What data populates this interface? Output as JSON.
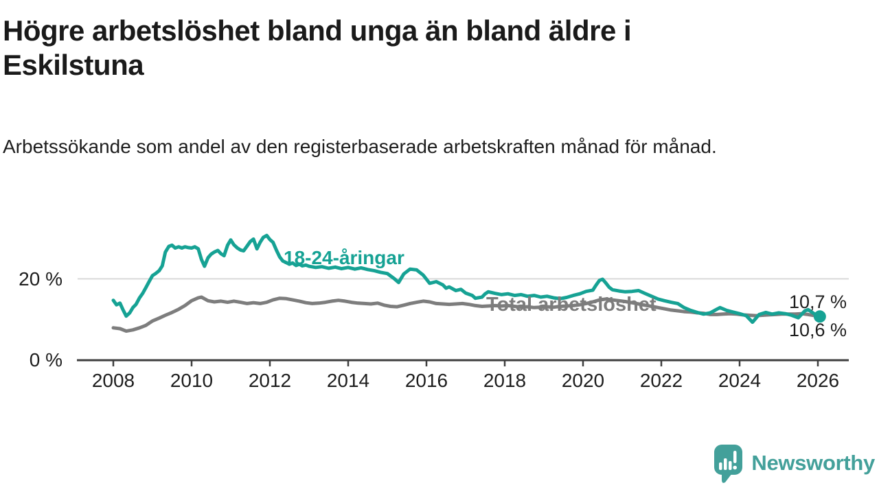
{
  "page": {
    "background": "#ffffff"
  },
  "header": {
    "title": "Högre arbetslöshet bland unga än bland äldre i Eskilstuna",
    "subtitle": "Arbetssökande som andel av den registerbaserade arbetskraften månad för månad."
  },
  "branding": {
    "name": "Newsworthy",
    "icon": "speech-bubble-bar-chart-icon",
    "color": "#43a09a"
  },
  "chart_data": {
    "type": "line",
    "unit": "%",
    "title": "",
    "xlabel": "",
    "ylabel": "",
    "x_ticks": [
      "2008",
      "2010",
      "2012",
      "2014",
      "2016",
      "2018",
      "2020",
      "2022",
      "2024",
      "2026"
    ],
    "y_ticks": [
      {
        "value": 0,
        "label": "0 %"
      },
      {
        "value": 20,
        "label": "20 %"
      }
    ],
    "xlim": [
      2007.9,
      2026.8
    ],
    "ylim": [
      0,
      33
    ],
    "grid": "horizontal gridline at 20% only",
    "legend": "inline labels next to lines",
    "colors": {
      "axis": "#3f3f3f",
      "grid": "#d9d9d9",
      "tick_text": "#1d1d1d"
    },
    "series": [
      {
        "name": "18-24-åringar",
        "color": "#16a294",
        "end_label": "10,7 %",
        "end_dot": true,
        "points": [
          [
            2008.0,
            14.7
          ],
          [
            2008.08,
            13.6
          ],
          [
            2008.17,
            14.0
          ],
          [
            2008.25,
            12.3
          ],
          [
            2008.33,
            10.8
          ],
          [
            2008.42,
            11.6
          ],
          [
            2008.5,
            12.9
          ],
          [
            2008.58,
            13.7
          ],
          [
            2008.67,
            15.3
          ],
          [
            2008.75,
            16.4
          ],
          [
            2008.83,
            17.8
          ],
          [
            2008.92,
            19.4
          ],
          [
            2009.0,
            20.8
          ],
          [
            2009.08,
            21.3
          ],
          [
            2009.17,
            22.0
          ],
          [
            2009.25,
            23.2
          ],
          [
            2009.33,
            26.6
          ],
          [
            2009.42,
            28.0
          ],
          [
            2009.5,
            28.3
          ],
          [
            2009.58,
            27.6
          ],
          [
            2009.67,
            27.9
          ],
          [
            2009.75,
            27.6
          ],
          [
            2009.83,
            27.9
          ],
          [
            2009.92,
            27.7
          ],
          [
            2010.0,
            27.6
          ],
          [
            2010.08,
            27.9
          ],
          [
            2010.17,
            27.4
          ],
          [
            2010.25,
            24.8
          ],
          [
            2010.33,
            23.1
          ],
          [
            2010.42,
            25.2
          ],
          [
            2010.5,
            26.1
          ],
          [
            2010.58,
            26.6
          ],
          [
            2010.67,
            27.0
          ],
          [
            2010.75,
            26.2
          ],
          [
            2010.83,
            25.7
          ],
          [
            2010.92,
            28.3
          ],
          [
            2011.0,
            29.6
          ],
          [
            2011.08,
            28.4
          ],
          [
            2011.17,
            27.6
          ],
          [
            2011.25,
            27.1
          ],
          [
            2011.33,
            26.9
          ],
          [
            2011.42,
            28.1
          ],
          [
            2011.5,
            29.2
          ],
          [
            2011.58,
            29.8
          ],
          [
            2011.67,
            27.4
          ],
          [
            2011.75,
            29.0
          ],
          [
            2011.83,
            30.2
          ],
          [
            2011.92,
            30.7
          ],
          [
            2012.0,
            29.7
          ],
          [
            2012.08,
            29.0
          ],
          [
            2012.17,
            27.0
          ],
          [
            2012.25,
            25.4
          ],
          [
            2012.33,
            24.4
          ],
          [
            2012.42,
            24.0
          ],
          [
            2012.5,
            23.6
          ],
          [
            2012.58,
            23.9
          ],
          [
            2012.67,
            23.3
          ],
          [
            2012.75,
            23.6
          ],
          [
            2012.83,
            23.2
          ],
          [
            2012.92,
            23.4
          ],
          [
            2013.0,
            23.1
          ],
          [
            2013.17,
            22.8
          ],
          [
            2013.33,
            23.0
          ],
          [
            2013.5,
            22.6
          ],
          [
            2013.67,
            22.9
          ],
          [
            2013.83,
            22.5
          ],
          [
            2014.0,
            22.8
          ],
          [
            2014.17,
            22.4
          ],
          [
            2014.33,
            22.7
          ],
          [
            2014.5,
            22.3
          ],
          [
            2014.67,
            22.0
          ],
          [
            2014.83,
            21.6
          ],
          [
            2015.0,
            21.3
          ],
          [
            2015.17,
            20.1
          ],
          [
            2015.29,
            19.1
          ],
          [
            2015.42,
            21.2
          ],
          [
            2015.58,
            22.4
          ],
          [
            2015.75,
            22.2
          ],
          [
            2015.92,
            20.9
          ],
          [
            2016.08,
            18.9
          ],
          [
            2016.25,
            19.3
          ],
          [
            2016.42,
            18.5
          ],
          [
            2016.5,
            17.7
          ],
          [
            2016.58,
            18.0
          ],
          [
            2016.75,
            17.1
          ],
          [
            2016.88,
            17.4
          ],
          [
            2017.0,
            16.5
          ],
          [
            2017.17,
            15.9
          ],
          [
            2017.25,
            15.2
          ],
          [
            2017.42,
            15.5
          ],
          [
            2017.5,
            16.3
          ],
          [
            2017.58,
            16.8
          ],
          [
            2017.75,
            16.4
          ],
          [
            2017.92,
            16.1
          ],
          [
            2018.08,
            16.3
          ],
          [
            2018.25,
            15.9
          ],
          [
            2018.42,
            16.1
          ],
          [
            2018.58,
            15.7
          ],
          [
            2018.75,
            15.9
          ],
          [
            2018.92,
            15.5
          ],
          [
            2019.08,
            15.7
          ],
          [
            2019.25,
            15.3
          ],
          [
            2019.42,
            15.1
          ],
          [
            2019.58,
            15.4
          ],
          [
            2019.75,
            15.9
          ],
          [
            2019.92,
            16.3
          ],
          [
            2020.08,
            16.9
          ],
          [
            2020.25,
            17.2
          ],
          [
            2020.33,
            18.4
          ],
          [
            2020.42,
            19.6
          ],
          [
            2020.5,
            19.9
          ],
          [
            2020.58,
            19.0
          ],
          [
            2020.67,
            17.9
          ],
          [
            2020.75,
            17.3
          ],
          [
            2020.92,
            17.0
          ],
          [
            2021.08,
            16.8
          ],
          [
            2021.25,
            16.9
          ],
          [
            2021.42,
            17.1
          ],
          [
            2021.58,
            16.4
          ],
          [
            2021.75,
            15.7
          ],
          [
            2021.92,
            15.0
          ],
          [
            2022.08,
            14.6
          ],
          [
            2022.25,
            14.2
          ],
          [
            2022.42,
            13.9
          ],
          [
            2022.58,
            12.9
          ],
          [
            2022.75,
            12.2
          ],
          [
            2022.92,
            11.7
          ],
          [
            2023.08,
            11.3
          ],
          [
            2023.25,
            11.6
          ],
          [
            2023.42,
            12.5
          ],
          [
            2023.5,
            12.9
          ],
          [
            2023.67,
            12.2
          ],
          [
            2023.83,
            11.8
          ],
          [
            2024.0,
            11.4
          ],
          [
            2024.17,
            10.9
          ],
          [
            2024.33,
            9.3
          ],
          [
            2024.5,
            11.2
          ],
          [
            2024.67,
            11.7
          ],
          [
            2024.83,
            11.3
          ],
          [
            2025.0,
            11.6
          ],
          [
            2025.17,
            11.4
          ],
          [
            2025.33,
            11.0
          ],
          [
            2025.5,
            10.4
          ],
          [
            2025.67,
            12.1
          ],
          [
            2025.75,
            12.4
          ],
          [
            2025.92,
            11.3
          ],
          [
            2026.05,
            10.7
          ]
        ]
      },
      {
        "name": "Total arbetslöshet",
        "color": "#7d7d7d",
        "end_label": "10,6 %",
        "end_dot": false,
        "points": [
          [
            2008.0,
            7.9
          ],
          [
            2008.17,
            7.7
          ],
          [
            2008.33,
            7.1
          ],
          [
            2008.5,
            7.4
          ],
          [
            2008.67,
            7.9
          ],
          [
            2008.83,
            8.5
          ],
          [
            2009.0,
            9.6
          ],
          [
            2009.17,
            10.3
          ],
          [
            2009.33,
            11.0
          ],
          [
            2009.5,
            11.7
          ],
          [
            2009.67,
            12.5
          ],
          [
            2009.83,
            13.4
          ],
          [
            2010.0,
            14.6
          ],
          [
            2010.17,
            15.3
          ],
          [
            2010.25,
            15.5
          ],
          [
            2010.42,
            14.6
          ],
          [
            2010.58,
            14.3
          ],
          [
            2010.75,
            14.5
          ],
          [
            2010.92,
            14.2
          ],
          [
            2011.08,
            14.5
          ],
          [
            2011.25,
            14.2
          ],
          [
            2011.42,
            13.9
          ],
          [
            2011.58,
            14.1
          ],
          [
            2011.75,
            13.9
          ],
          [
            2011.92,
            14.2
          ],
          [
            2012.08,
            14.8
          ],
          [
            2012.25,
            15.2
          ],
          [
            2012.42,
            15.1
          ],
          [
            2012.58,
            14.8
          ],
          [
            2012.75,
            14.5
          ],
          [
            2012.92,
            14.1
          ],
          [
            2013.08,
            13.9
          ],
          [
            2013.25,
            14.0
          ],
          [
            2013.42,
            14.2
          ],
          [
            2013.58,
            14.5
          ],
          [
            2013.75,
            14.7
          ],
          [
            2013.92,
            14.5
          ],
          [
            2014.08,
            14.2
          ],
          [
            2014.25,
            14.0
          ],
          [
            2014.42,
            13.9
          ],
          [
            2014.58,
            13.8
          ],
          [
            2014.75,
            14.0
          ],
          [
            2014.92,
            13.5
          ],
          [
            2015.08,
            13.2
          ],
          [
            2015.25,
            13.1
          ],
          [
            2015.42,
            13.5
          ],
          [
            2015.58,
            13.9
          ],
          [
            2015.75,
            14.2
          ],
          [
            2015.92,
            14.5
          ],
          [
            2016.08,
            14.3
          ],
          [
            2016.25,
            13.9
          ],
          [
            2016.42,
            13.8
          ],
          [
            2016.58,
            13.7
          ],
          [
            2016.75,
            13.8
          ],
          [
            2016.92,
            13.9
          ],
          [
            2017.08,
            13.7
          ],
          [
            2017.25,
            13.4
          ],
          [
            2017.42,
            13.2
          ],
          [
            2017.58,
            13.3
          ],
          [
            2017.75,
            13.4
          ],
          [
            2017.92,
            13.3
          ],
          [
            2018.08,
            13.4
          ],
          [
            2018.25,
            13.2
          ],
          [
            2018.42,
            13.0
          ],
          [
            2018.58,
            13.1
          ],
          [
            2018.75,
            12.9
          ],
          [
            2018.92,
            13.0
          ],
          [
            2019.08,
            13.1
          ],
          [
            2019.25,
            13.0
          ],
          [
            2019.42,
            13.2
          ],
          [
            2019.58,
            13.3
          ],
          [
            2019.75,
            13.4
          ],
          [
            2019.92,
            13.6
          ],
          [
            2020.08,
            13.9
          ],
          [
            2020.25,
            14.3
          ],
          [
            2020.42,
            14.8
          ],
          [
            2020.58,
            15.0
          ],
          [
            2020.75,
            14.8
          ],
          [
            2020.92,
            14.6
          ],
          [
            2021.08,
            14.4
          ],
          [
            2021.25,
            14.1
          ],
          [
            2021.42,
            13.8
          ],
          [
            2021.58,
            13.5
          ],
          [
            2021.75,
            13.2
          ],
          [
            2021.92,
            12.9
          ],
          [
            2022.08,
            12.6
          ],
          [
            2022.25,
            12.3
          ],
          [
            2022.42,
            12.1
          ],
          [
            2022.58,
            11.9
          ],
          [
            2022.75,
            11.8
          ],
          [
            2022.92,
            11.6
          ],
          [
            2023.08,
            11.5
          ],
          [
            2023.25,
            11.2
          ],
          [
            2023.42,
            11.2
          ],
          [
            2023.58,
            11.3
          ],
          [
            2023.75,
            11.4
          ],
          [
            2023.92,
            11.3
          ],
          [
            2024.08,
            11.1
          ],
          [
            2024.25,
            11.0
          ],
          [
            2024.42,
            10.9
          ],
          [
            2024.58,
            11.0
          ],
          [
            2024.75,
            11.1
          ],
          [
            2024.92,
            11.2
          ],
          [
            2025.08,
            11.3
          ],
          [
            2025.25,
            11.3
          ],
          [
            2025.42,
            11.3
          ],
          [
            2025.58,
            11.4
          ],
          [
            2025.75,
            11.2
          ],
          [
            2025.92,
            10.9
          ],
          [
            2026.05,
            10.6
          ]
        ]
      }
    ]
  }
}
